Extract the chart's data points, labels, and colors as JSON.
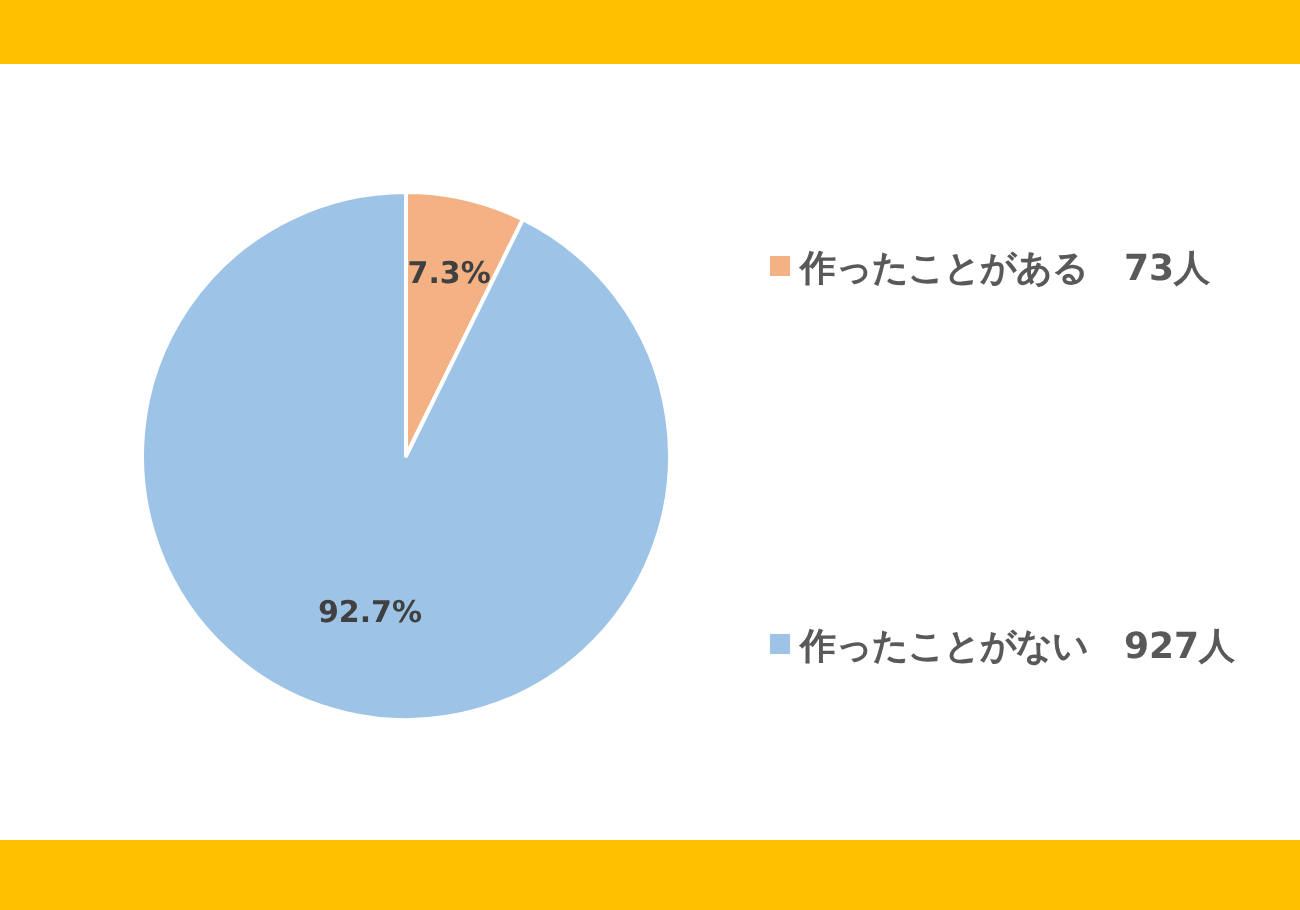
{
  "chart_data": {
    "type": "pie",
    "categories": [
      "作ったことがある　73人",
      "作ったことがない　927人"
    ],
    "values": [
      7.3,
      92.7
    ],
    "colors": [
      "#f4b183",
      "#9dc3e6"
    ],
    "value_labels": [
      "7.3%",
      "92.7%"
    ],
    "legend": "right"
  }
}
